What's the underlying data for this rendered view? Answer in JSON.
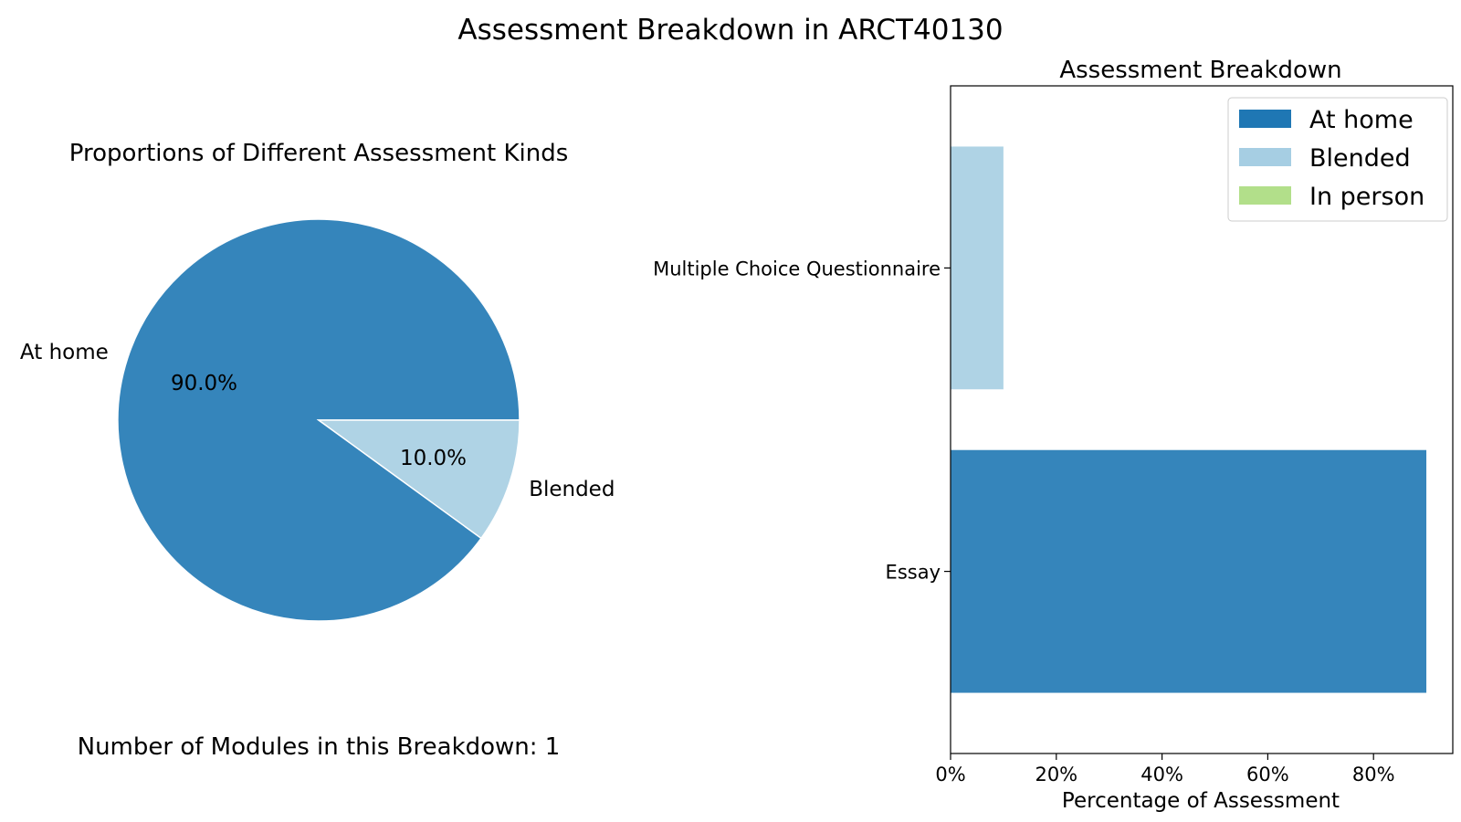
{
  "figure": {
    "title": "Assessment Breakdown in ARCT40130"
  },
  "colors": {
    "at_home": "#3585bb",
    "at_home_legend": "#1f77b4",
    "blended": "#afd3e5",
    "in_person": "#b2df8a",
    "axis": "#000000",
    "background": "#ffffff"
  },
  "pie_panel": {
    "title": "Proportions of Different Assessment Kinds",
    "footer": "Number of Modules in this Breakdown: 1"
  },
  "bar_panel": {
    "title": "Assessment Breakdown",
    "xlabel": "Percentage of Assessment"
  },
  "chart_data": [
    {
      "type": "pie",
      "title": "Proportions of Different Assessment Kinds",
      "slices": [
        {
          "label": "At home",
          "value": 90.0,
          "pct_label": "90.0%",
          "color": "#3585bb"
        },
        {
          "label": "Blended",
          "value": 10.0,
          "pct_label": "10.0%",
          "color": "#afd3e5"
        }
      ]
    },
    {
      "type": "bar",
      "orientation": "horizontal",
      "stacked": true,
      "title": "Assessment Breakdown",
      "xlabel": "Percentage of Assessment",
      "ylabel": "",
      "xlim": [
        0,
        95
      ],
      "xticks": [
        0,
        20,
        40,
        60,
        80
      ],
      "xtick_labels": [
        "0%",
        "20%",
        "40%",
        "60%",
        "80%"
      ],
      "categories": [
        "Multiple Choice Questionnaire",
        "Essay"
      ],
      "series": [
        {
          "name": "At home",
          "values": [
            0,
            90
          ],
          "color": "#3585bb",
          "legend_color": "#1f77b4"
        },
        {
          "name": "Blended",
          "values": [
            10,
            0
          ],
          "color": "#afd3e5",
          "legend_color": "#a6cee3"
        },
        {
          "name": "In person",
          "values": [
            0,
            0
          ],
          "color": "#b2df8a",
          "legend_color": "#b2df8a"
        }
      ],
      "legend": {
        "position": "top-right"
      },
      "grid": false
    }
  ]
}
